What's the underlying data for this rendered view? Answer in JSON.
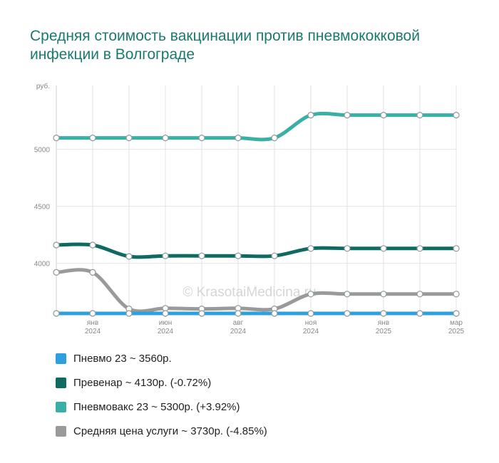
{
  "title": "Средняя стоимость вакцинации против пневмококковой инфекции в Волгограде",
  "watermark": "© KrasotaiMedicina.ru",
  "chart_data": {
    "type": "line",
    "ylabel": "руб.",
    "ylim": [
      3560,
      5560
    ],
    "yticks": [
      4000,
      4500,
      5000
    ],
    "grid": true,
    "legend_position": "bottom",
    "x_tick_labels": [
      {
        "index": 1,
        "month": "янв",
        "year": "2024"
      },
      {
        "index": 3,
        "month": "июн",
        "year": "2024"
      },
      {
        "index": 5,
        "month": "авг",
        "year": "2024"
      },
      {
        "index": 7,
        "month": "ноя",
        "year": "2024"
      },
      {
        "index": 9,
        "month": "янв",
        "year": "2025"
      },
      {
        "index": 11,
        "month": "мар",
        "year": "2025"
      }
    ],
    "series": [
      {
        "name": "Пневмо 23",
        "color": "#2f9fdf",
        "legend": "Пневмо 23 ~ 3560р.",
        "values": [
          3560,
          3560,
          3560,
          3560,
          3560,
          3560,
          3560,
          3560,
          3560,
          3560,
          3560,
          3560
        ]
      },
      {
        "name": "Превенар",
        "color": "#0f6b61",
        "legend": "Превенар ~ 4130р. (-0.72%)",
        "values": [
          4160,
          4160,
          4060,
          4065,
          4065,
          4065,
          4065,
          4130,
          4130,
          4130,
          4130,
          4130
        ]
      },
      {
        "name": "Пневмовакс 23",
        "color": "#3aafa6",
        "legend": "Пневмовакс 23 ~ 5300р. (+3.92%)",
        "values": [
          5100,
          5100,
          5100,
          5100,
          5100,
          5100,
          5100,
          5300,
          5300,
          5300,
          5300,
          5300
        ]
      },
      {
        "name": "Средняя цена услуги",
        "color": "#9a9a9a",
        "legend": "Средняя цена услуги ~ 3730р. (-4.85%)",
        "values": [
          3920,
          3920,
          3600,
          3605,
          3600,
          3605,
          3600,
          3730,
          3730,
          3730,
          3730,
          3730
        ]
      }
    ]
  }
}
